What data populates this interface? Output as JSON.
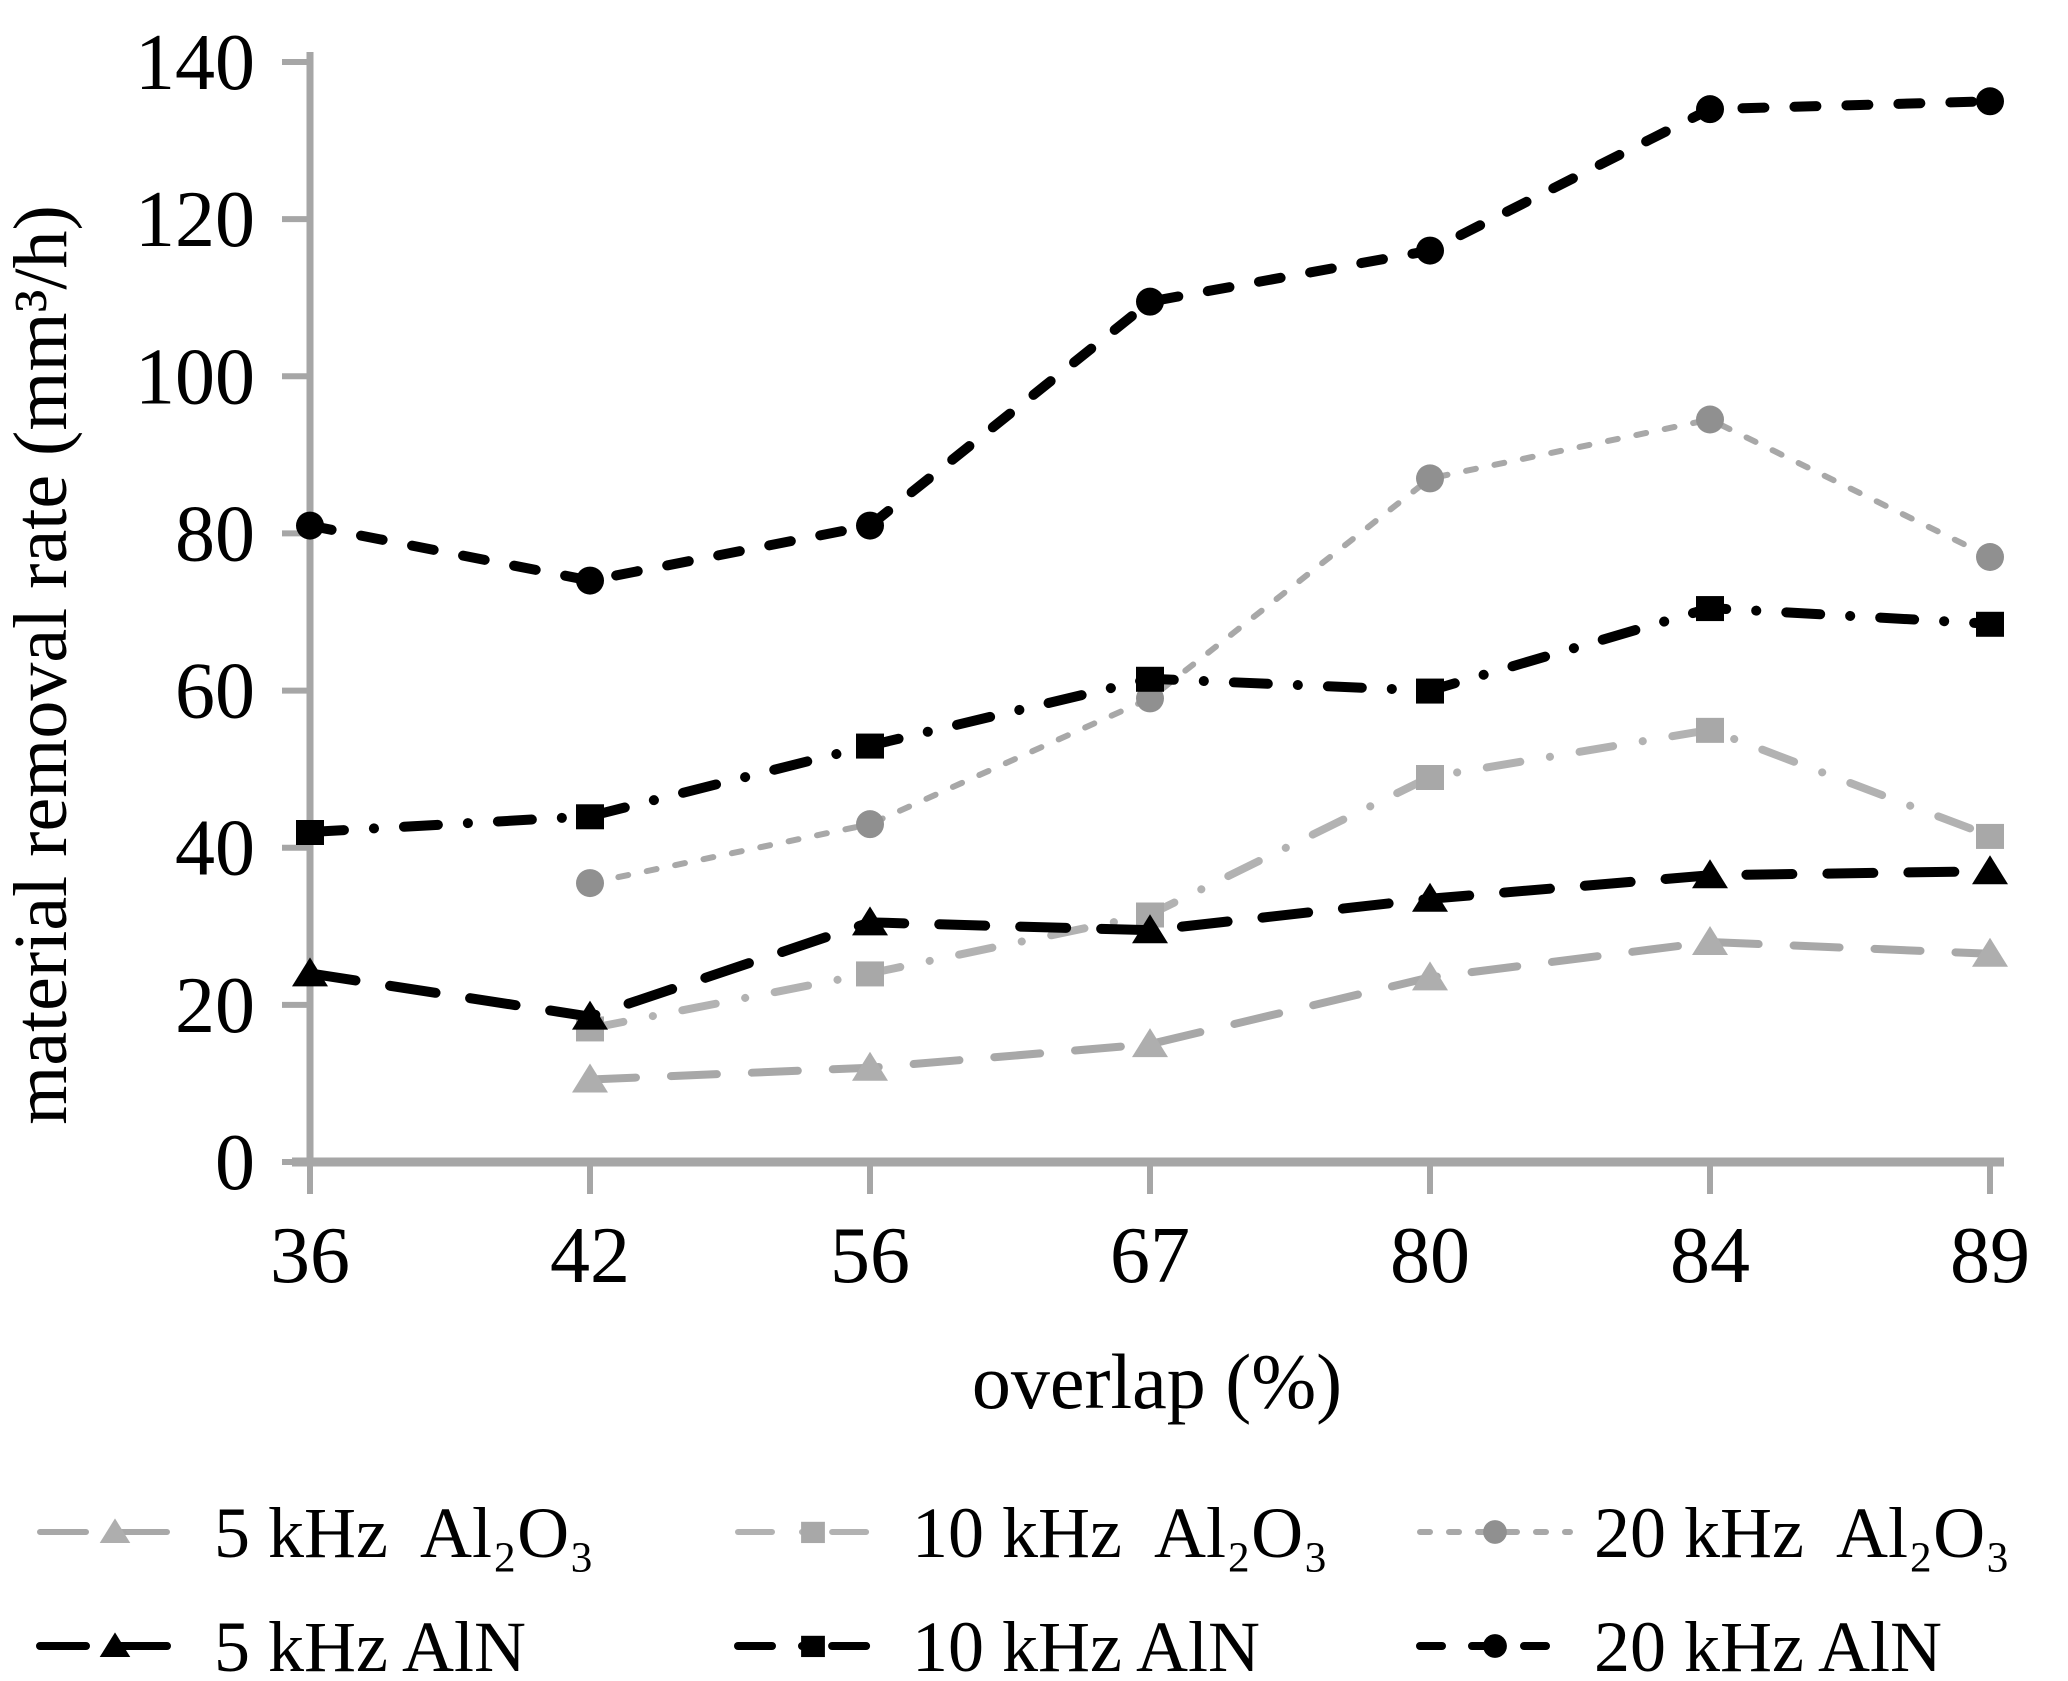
{
  "page": {
    "background": "#ffffff"
  },
  "chart_data": {
    "type": "line",
    "title": "",
    "xlabel": "overlap (%)",
    "ylabel": "material removal rate (mm³/h)",
    "categories": [
      "36",
      "42",
      "56",
      "67",
      "80",
      "84",
      "89"
    ],
    "yticks": [
      0,
      20,
      40,
      60,
      80,
      100,
      120,
      140
    ],
    "ylim": [
      0,
      140
    ],
    "grid": false,
    "legend_position": "bottom",
    "axis_color": "#a6a6a6",
    "text_color": "#000000",
    "series": [
      {
        "name": "5 kHz  Al₂O₃",
        "marker": "triangle",
        "marker_color": "#aeaeae",
        "line_color": "#a8a8a8",
        "line_width": 8,
        "line_style": "long-dash",
        "values": [
          null,
          10.5,
          12,
          15,
          23.5,
          28,
          26.5
        ]
      },
      {
        "name": "10 kHz  Al₂O₃",
        "marker": "square",
        "marker_color": "#a8a8a8",
        "line_color": "#b2b2b2",
        "line_width": 8,
        "line_style": "dash-dot",
        "values": [
          null,
          17,
          24,
          31.5,
          49,
          55,
          41.5
        ]
      },
      {
        "name": "20 kHz  Al₂O₃",
        "marker": "circle",
        "marker_color": "#909090",
        "line_color": "#a8a8a8",
        "line_width": 6,
        "line_style": "fine-dash",
        "values": [
          null,
          35.5,
          43,
          59,
          87,
          94.5,
          77
        ]
      },
      {
        "name": "5 kHz AlN",
        "marker": "triangle",
        "marker_color": "#000000",
        "line_color": "#000000",
        "line_width": 10,
        "line_style": "long-dash",
        "values": [
          24,
          18.5,
          30.5,
          29.5,
          33.5,
          36.5,
          37
        ]
      },
      {
        "name": "10 kHz AlN",
        "marker": "square",
        "marker_color": "#000000",
        "line_color": "#000000",
        "line_width": 10,
        "line_style": "dash-dot",
        "values": [
          42,
          44,
          53,
          61.5,
          60,
          70.5,
          68.5
        ]
      },
      {
        "name": "20 kHz AlN",
        "marker": "circle",
        "marker_color": "#000000",
        "line_color": "#000000",
        "line_width": 10,
        "line_style": "dash",
        "values": [
          81,
          74,
          81,
          109.5,
          116,
          134,
          135
        ]
      }
    ]
  }
}
